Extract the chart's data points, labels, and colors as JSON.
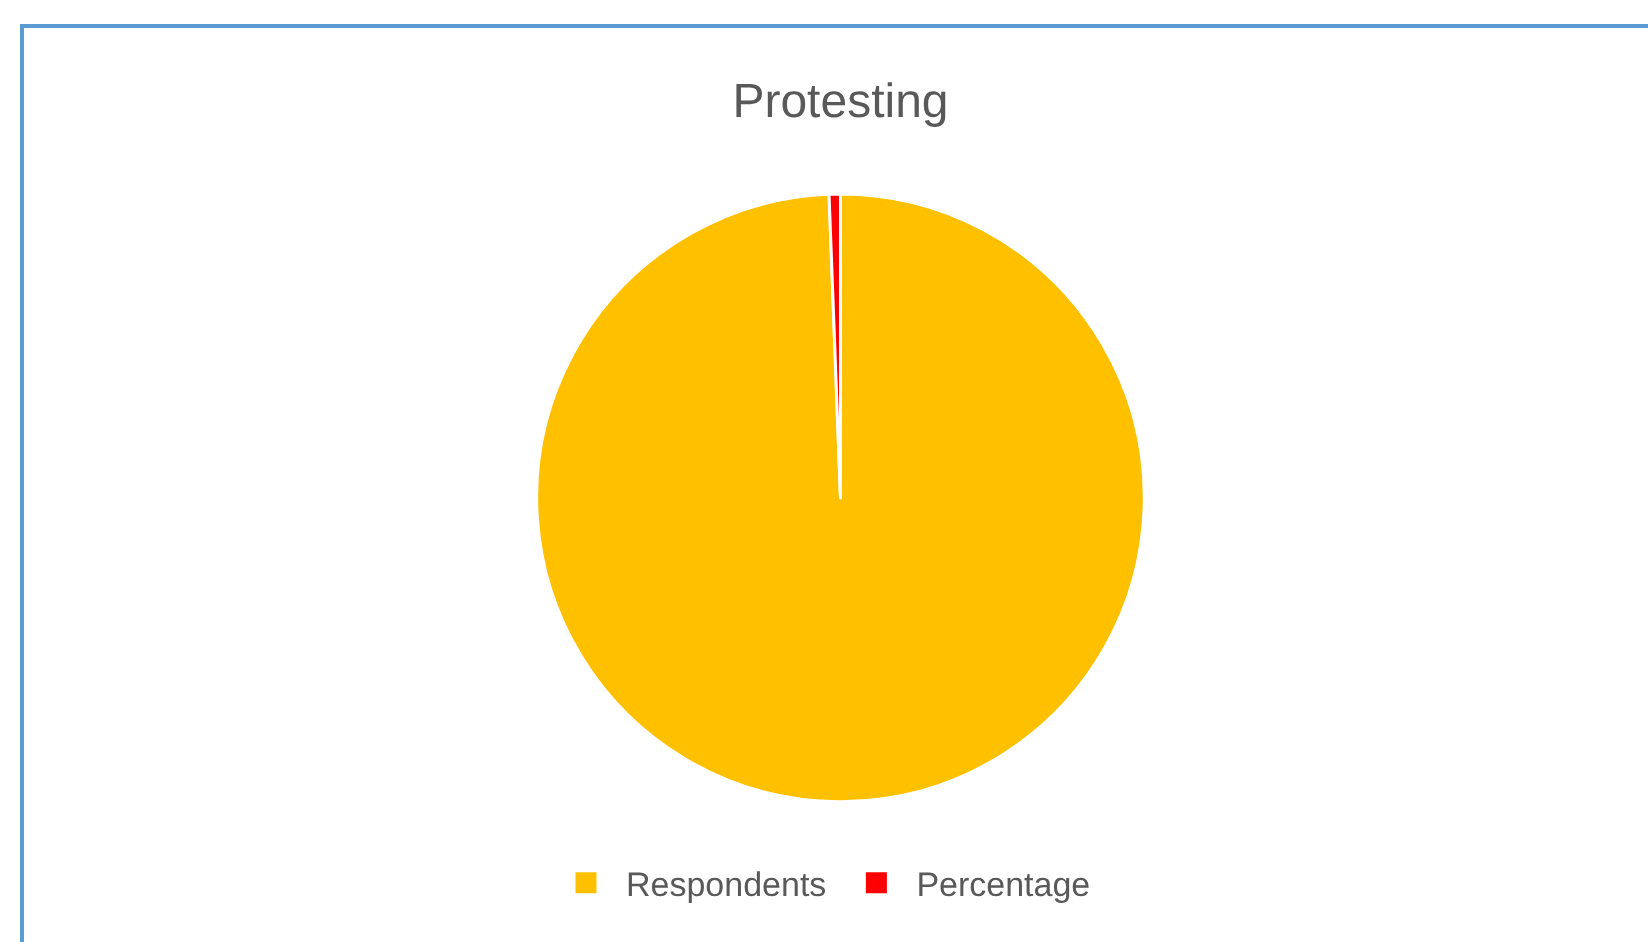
{
  "chart_data": {
    "type": "pie",
    "title": "Protesting",
    "categories": [
      "Respondents",
      "Percentage"
    ],
    "values": [
      99.4,
      0.6
    ],
    "colors": [
      "#ffc000",
      "#ff0000"
    ],
    "legend": "bottom"
  }
}
